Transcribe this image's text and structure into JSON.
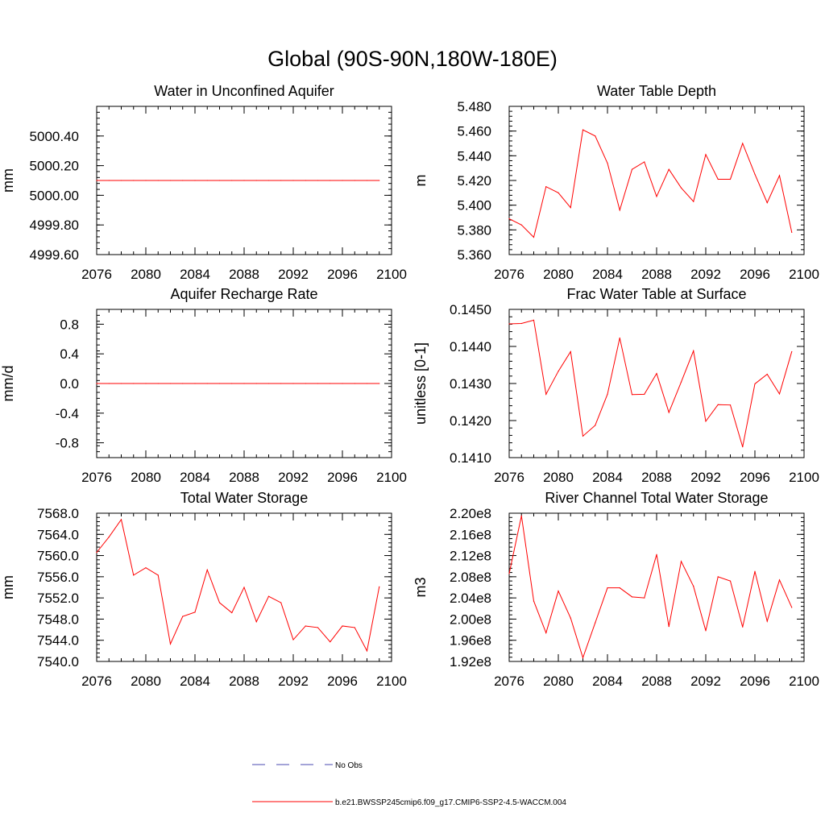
{
  "figure": {
    "title": "Global (90S-90N,180W-180E)",
    "series_color": "#ff0000",
    "obs_color": "#4a4ab0"
  },
  "legend": {
    "obs_label": "No Obs",
    "model_label": "b.e21.BWSSP245cmip6.f09_g17.CMIP6-SSP2-4.5-WACCM.004"
  },
  "chart_data": [
    {
      "type": "line",
      "title": "Water in Unconfined Aquifer",
      "xlabel": "",
      "ylabel": "mm",
      "xlim": [
        2076,
        2100
      ],
      "ylim": [
        4999.6,
        5000.6
      ],
      "xticks": [
        2076,
        2080,
        2084,
        2088,
        2092,
        2096,
        2100
      ],
      "xtick_labels": [
        "2076",
        "2080",
        "2084",
        "2088",
        "2092",
        "2096",
        "2100"
      ],
      "yticks": [
        4999.6,
        4999.8,
        5000.0,
        5000.2,
        5000.4
      ],
      "ytick_labels": [
        "4999.60",
        "4999.80",
        "5000.00",
        "5000.20",
        "5000.40"
      ],
      "x": [
        2076,
        2077,
        2078,
        2079,
        2080,
        2081,
        2082,
        2083,
        2084,
        2085,
        2086,
        2087,
        2088,
        2089,
        2090,
        2091,
        2092,
        2093,
        2094,
        2095,
        2096,
        2097,
        2098,
        2099
      ],
      "series": [
        {
          "name": "b.e21.BWSSP245cmip6.f09_g17.CMIP6-SSP2-4.5-WACCM.004",
          "values": [
            5000.1,
            5000.1,
            5000.1,
            5000.1,
            5000.1,
            5000.1,
            5000.1,
            5000.1,
            5000.1,
            5000.1,
            5000.1,
            5000.1,
            5000.1,
            5000.1,
            5000.1,
            5000.1,
            5000.1,
            5000.1,
            5000.1,
            5000.1,
            5000.1,
            5000.1,
            5000.1,
            5000.1
          ]
        }
      ]
    },
    {
      "type": "line",
      "title": "Water Table Depth",
      "xlabel": "",
      "ylabel": "m",
      "xlim": [
        2076,
        2100
      ],
      "ylim": [
        5.36,
        5.48
      ],
      "xticks": [
        2076,
        2080,
        2084,
        2088,
        2092,
        2096,
        2100
      ],
      "xtick_labels": [
        "2076",
        "2080",
        "2084",
        "2088",
        "2092",
        "2096",
        "2100"
      ],
      "yticks": [
        5.36,
        5.38,
        5.4,
        5.42,
        5.44,
        5.46,
        5.48
      ],
      "ytick_labels": [
        "5.360",
        "5.380",
        "5.400",
        "5.420",
        "5.440",
        "5.460",
        "5.480"
      ],
      "x": [
        2076,
        2077,
        2078,
        2079,
        2080,
        2081,
        2082,
        2083,
        2084,
        2085,
        2086,
        2087,
        2088,
        2089,
        2090,
        2091,
        2092,
        2093,
        2094,
        2095,
        2096,
        2097,
        2098,
        2099
      ],
      "series": [
        {
          "name": "b.e21.BWSSP245cmip6.f09_g17.CMIP6-SSP2-4.5-WACCM.004",
          "values": [
            5.389,
            5.384,
            5.374,
            5.415,
            5.41,
            5.398,
            5.461,
            5.456,
            5.434,
            5.396,
            5.429,
            5.435,
            5.407,
            5.429,
            5.414,
            5.403,
            5.441,
            5.421,
            5.421,
            5.45,
            5.425,
            5.402,
            5.424,
            5.378
          ]
        }
      ]
    },
    {
      "type": "line",
      "title": "Aquifer Recharge Rate",
      "xlabel": "",
      "ylabel": "mm/d",
      "xlim": [
        2076,
        2100
      ],
      "ylim": [
        -1.0,
        1.0
      ],
      "xticks": [
        2076,
        2080,
        2084,
        2088,
        2092,
        2096,
        2100
      ],
      "xtick_labels": [
        "2076",
        "2080",
        "2084",
        "2088",
        "2092",
        "2096",
        "2100"
      ],
      "yticks": [
        -0.8,
        -0.4,
        0.0,
        0.4,
        0.8
      ],
      "ytick_labels": [
        "-0.8",
        "-0.4",
        "0.0",
        "0.4",
        "0.8"
      ],
      "x": [
        2076,
        2077,
        2078,
        2079,
        2080,
        2081,
        2082,
        2083,
        2084,
        2085,
        2086,
        2087,
        2088,
        2089,
        2090,
        2091,
        2092,
        2093,
        2094,
        2095,
        2096,
        2097,
        2098,
        2099
      ],
      "series": [
        {
          "name": "b.e21.BWSSP245cmip6.f09_g17.CMIP6-SSP2-4.5-WACCM.004",
          "values": [
            0,
            0,
            0,
            0,
            0,
            0,
            0,
            0,
            0,
            0,
            0,
            0,
            0,
            0,
            0,
            0,
            0,
            0,
            0,
            0,
            0,
            0,
            0,
            0
          ]
        }
      ]
    },
    {
      "type": "line",
      "title": "Frac Water Table at Surface",
      "xlabel": "",
      "ylabel": "unitless [0-1]",
      "xlim": [
        2076,
        2100
      ],
      "ylim": [
        0.141,
        0.145
      ],
      "xticks": [
        2076,
        2080,
        2084,
        2088,
        2092,
        2096,
        2100
      ],
      "xtick_labels": [
        "2076",
        "2080",
        "2084",
        "2088",
        "2092",
        "2096",
        "2100"
      ],
      "yticks": [
        0.141,
        0.142,
        0.143,
        0.144,
        0.145
      ],
      "ytick_labels": [
        "0.1410",
        "0.1420",
        "0.1430",
        "0.1440",
        "0.1450"
      ],
      "x": [
        2076,
        2077,
        2078,
        2079,
        2080,
        2081,
        2082,
        2083,
        2084,
        2085,
        2086,
        2087,
        2088,
        2089,
        2090,
        2091,
        2092,
        2093,
        2094,
        2095,
        2096,
        2097,
        2098,
        2099
      ],
      "series": [
        {
          "name": "b.e21.BWSSP245cmip6.f09_g17.CMIP6-SSP2-4.5-WACCM.004",
          "values": [
            0.14461,
            0.14462,
            0.14471,
            0.14271,
            0.14333,
            0.14386,
            0.14158,
            0.14187,
            0.14271,
            0.14423,
            0.1427,
            0.14271,
            0.14327,
            0.14222,
            0.14304,
            0.14388,
            0.14198,
            0.14243,
            0.14242,
            0.14129,
            0.14299,
            0.14325,
            0.14272,
            0.14386
          ]
        }
      ]
    },
    {
      "type": "line",
      "title": "Total Water Storage",
      "xlabel": "",
      "ylabel": "mm",
      "xlim": [
        2076,
        2100
      ],
      "ylim": [
        7540.0,
        7568.0
      ],
      "xticks": [
        2076,
        2080,
        2084,
        2088,
        2092,
        2096,
        2100
      ],
      "xtick_labels": [
        "2076",
        "2080",
        "2084",
        "2088",
        "2092",
        "2096",
        "2100"
      ],
      "yticks": [
        7540.0,
        7544.0,
        7548.0,
        7552.0,
        7556.0,
        7560.0,
        7564.0,
        7568.0
      ],
      "ytick_labels": [
        "7540.0",
        "7544.0",
        "7548.0",
        "7552.0",
        "7556.0",
        "7560.0",
        "7564.0",
        "7568.0"
      ],
      "x": [
        2076,
        2077,
        2078,
        2079,
        2080,
        2081,
        2082,
        2083,
        2084,
        2085,
        2086,
        2087,
        2088,
        2089,
        2090,
        2091,
        2092,
        2093,
        2094,
        2095,
        2096,
        2097,
        2098,
        2099
      ],
      "series": [
        {
          "name": "b.e21.BWSSP245cmip6.f09_g17.CMIP6-SSP2-4.5-WACCM.004",
          "values": [
            7560.6,
            7563.5,
            7566.8,
            7556.3,
            7557.7,
            7556.3,
            7543.3,
            7548.5,
            7549.3,
            7557.3,
            7551.1,
            7549.2,
            7554.0,
            7547.5,
            7552.3,
            7551.1,
            7544.1,
            7546.7,
            7546.4,
            7543.7,
            7546.7,
            7546.4,
            7542.0,
            7554.1
          ]
        }
      ]
    },
    {
      "type": "line",
      "title": "River Channel Total Water Storage",
      "xlabel": "",
      "ylabel": "m3",
      "xlim": [
        2076,
        2100
      ],
      "ylim": [
        192000000.0,
        220000000.0
      ],
      "xticks": [
        2076,
        2080,
        2084,
        2088,
        2092,
        2096,
        2100
      ],
      "xtick_labels": [
        "2076",
        "2080",
        "2084",
        "2088",
        "2092",
        "2096",
        "2100"
      ],
      "yticks": [
        192000000.0,
        196000000.0,
        200000000.0,
        204000000.0,
        208000000.0,
        212000000.0,
        216000000.0,
        220000000.0
      ],
      "ytick_labels": [
        "1.92e8",
        "1.96e8",
        "2.00e8",
        "2.04e8",
        "2.08e8",
        "2.12e8",
        "2.16e8",
        "2.20e8"
      ],
      "x": [
        2076,
        2077,
        2078,
        2079,
        2080,
        2081,
        2082,
        2083,
        2084,
        2085,
        2086,
        2087,
        2088,
        2089,
        2090,
        2091,
        2092,
        2093,
        2094,
        2095,
        2096,
        2097,
        2098,
        2099
      ],
      "series": [
        {
          "name": "b.e21.BWSSP245cmip6.f09_g17.CMIP6-SSP2-4.5-WACCM.004",
          "values": [
            208600000.0,
            219500000.0,
            203400000.0,
            197400000.0,
            205300000.0,
            200200000.0,
            192700000.0,
            199300000.0,
            205900000.0,
            205900000.0,
            204200000.0,
            204000000.0,
            212200000.0,
            198600000.0,
            210900000.0,
            206200000.0,
            197800000.0,
            208000000.0,
            207200000.0,
            198500000.0,
            209000000.0,
            199600000.0,
            207400000.0,
            202200000.0
          ]
        }
      ]
    }
  ]
}
